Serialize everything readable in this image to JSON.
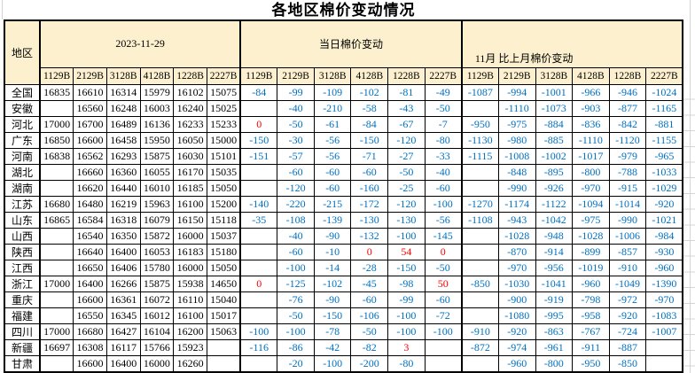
{
  "title": "各地区棉价变动情况",
  "header": {
    "region_label": "地区",
    "groups": [
      {
        "label": "2023-11-29"
      },
      {
        "label": "当日棉价变动"
      },
      {
        "label": "11月 比上月棉价变动"
      }
    ],
    "codes": [
      "1129B",
      "2129B",
      "3128B",
      "4128B",
      "1228B",
      "2227B"
    ]
  },
  "colors": {
    "header_bg": "#FCF0CE",
    "negative_value": "#0070C0",
    "nonnegative_value": "#FF0000",
    "price_value": "#000000",
    "table_border": "#000000",
    "sheet_gridline": "#D4D4D4"
  },
  "rows": [
    {
      "region": "全国",
      "price": [
        "16835",
        "16610",
        "16314",
        "15979",
        "16102",
        "15075"
      ],
      "daily": [
        "-84",
        "-99",
        "-109",
        "-102",
        "-81",
        "-49"
      ],
      "monthly": [
        "-1087",
        "-994",
        "-1001",
        "-966",
        "-946",
        "-1024"
      ]
    },
    {
      "region": "安徽",
      "price": [
        "",
        "16560",
        "16248",
        "16003",
        "16240",
        "15025"
      ],
      "daily": [
        "",
        "-40",
        "-210",
        "-58",
        "-43",
        "-50"
      ],
      "monthly": [
        "",
        "-1110",
        "-1073",
        "-903",
        "-877",
        "-1165"
      ]
    },
    {
      "region": "河北",
      "price": [
        "17000",
        "16700",
        "16489",
        "16136",
        "16233",
        "15233"
      ],
      "daily": [
        "0",
        "-50",
        "-61",
        "-84",
        "-67",
        "-7"
      ],
      "monthly": [
        "-950",
        "-975",
        "-884",
        "-836",
        "-842",
        "-881"
      ]
    },
    {
      "region": "广东",
      "price": [
        "16850",
        "16600",
        "16458",
        "15950",
        "16050",
        "15000"
      ],
      "daily": [
        "-150",
        "-30",
        "-56",
        "-150",
        "-120",
        "-80"
      ],
      "monthly": [
        "-1130",
        "-980",
        "-885",
        "-1110",
        "-1120",
        "-1155"
      ]
    },
    {
      "region": "河南",
      "price": [
        "16838",
        "16562",
        "16293",
        "15875",
        "16030",
        "15101"
      ],
      "daily": [
        "-151",
        "-57",
        "-56",
        "-71",
        "-27",
        "-33"
      ],
      "monthly": [
        "-1115",
        "-1008",
        "-1002",
        "-1017",
        "-979",
        "-965"
      ]
    },
    {
      "region": "湖北",
      "price": [
        "",
        "16660",
        "16360",
        "16055",
        "16170",
        "15035"
      ],
      "daily": [
        "",
        "-60",
        "-60",
        "-60",
        "-50",
        "-40"
      ],
      "monthly": [
        "",
        "-848",
        "-895",
        "-800",
        "-788",
        "-1033"
      ]
    },
    {
      "region": "湖南",
      "price": [
        "",
        "16620",
        "16440",
        "16010",
        "16185",
        "15050"
      ],
      "daily": [
        "",
        "-120",
        "-60",
        "-160",
        "-25",
        "-60"
      ],
      "monthly": [
        "",
        "-990",
        "-926",
        "-970",
        "-915",
        "-1029"
      ]
    },
    {
      "region": "江苏",
      "price": [
        "16680",
        "16480",
        "16219",
        "15963",
        "16100",
        "15200"
      ],
      "daily": [
        "-140",
        "-220",
        "-215",
        "-172",
        "-120",
        "-100"
      ],
      "monthly": [
        "-1270",
        "-1174",
        "-1122",
        "-1094",
        "-1014",
        "-920"
      ]
    },
    {
      "region": "山东",
      "price": [
        "16865",
        "16584",
        "16318",
        "16079",
        "16150",
        "15118"
      ],
      "daily": [
        "-35",
        "-108",
        "-139",
        "-130",
        "-130",
        "-56"
      ],
      "monthly": [
        "-1108",
        "-943",
        "-1042",
        "-975",
        "-990",
        "-1021"
      ]
    },
    {
      "region": "山西",
      "price": [
        "",
        "16540",
        "16350",
        "15872",
        "16000",
        "15037"
      ],
      "daily": [
        "",
        "-40",
        "-90",
        "-132",
        "-100",
        "-145"
      ],
      "monthly": [
        "",
        "-1028",
        "-948",
        "-1028",
        "-1006",
        "-984"
      ]
    },
    {
      "region": "陕西",
      "price": [
        "",
        "16640",
        "16400",
        "16053",
        "16183",
        "15180"
      ],
      "daily": [
        "",
        "-60",
        "-10",
        "0",
        "54",
        "0"
      ],
      "monthly": [
        "",
        "-870",
        "-914",
        "-899",
        "-857",
        "-930"
      ]
    },
    {
      "region": "江西",
      "price": [
        "",
        "16650",
        "16406",
        "15780",
        "16000",
        "15050"
      ],
      "daily": [
        "",
        "-100",
        "-14",
        "-28",
        "-150",
        "-50"
      ],
      "monthly": [
        "",
        "-970",
        "-956",
        "-1019",
        "-910",
        "-960"
      ]
    },
    {
      "region": "浙江",
      "price": [
        "17000",
        "16400",
        "16266",
        "15875",
        "15938",
        "14650"
      ],
      "daily": [
        "0",
        "-125",
        "-102",
        "-45",
        "-98",
        "50"
      ],
      "monthly": [
        "-850",
        "-1030",
        "-1041",
        "-960",
        "-1049",
        "-1390"
      ]
    },
    {
      "region": "重庆",
      "price": [
        "",
        "16600",
        "16361",
        "16072",
        "16110",
        "15040"
      ],
      "daily": [
        "",
        "-76",
        "-90",
        "-60",
        "-99",
        "-60"
      ],
      "monthly": [
        "",
        "-900",
        "-919",
        "-798",
        "-972",
        "-970"
      ]
    },
    {
      "region": "福建",
      "price": [
        "",
        "16550",
        "16345",
        "16012",
        "16100",
        "15017"
      ],
      "daily": [
        "",
        "-50",
        "-150",
        "-106",
        "-100",
        "-72"
      ],
      "monthly": [
        "",
        "-1080",
        "-995",
        "-958",
        "-920",
        "-1083"
      ]
    },
    {
      "region": "四川",
      "price": [
        "17000",
        "16680",
        "16427",
        "16104",
        "16200",
        "15063"
      ],
      "daily": [
        "-100",
        "-100",
        "-78",
        "-50",
        "-100",
        "-100"
      ],
      "monthly": [
        "-910",
        "-920",
        "-863",
        "-767",
        "-724",
        "-1007"
      ]
    },
    {
      "region": "新疆",
      "price": [
        "16697",
        "16308",
        "16117",
        "15766",
        "15923",
        ""
      ],
      "daily": [
        "-116",
        "-86",
        "-42",
        "-82",
        "3",
        ""
      ],
      "monthly": [
        "-872",
        "-974",
        "-961",
        "-911",
        "-887",
        ""
      ]
    },
    {
      "region": "甘肃",
      "price": [
        "",
        "16600",
        "16400",
        "16000",
        "16260",
        ""
      ],
      "daily": [
        "",
        "-20",
        "-100",
        "-200",
        "-80",
        ""
      ],
      "monthly": [
        "",
        "-960",
        "-800",
        "-950",
        "-850",
        ""
      ]
    }
  ]
}
